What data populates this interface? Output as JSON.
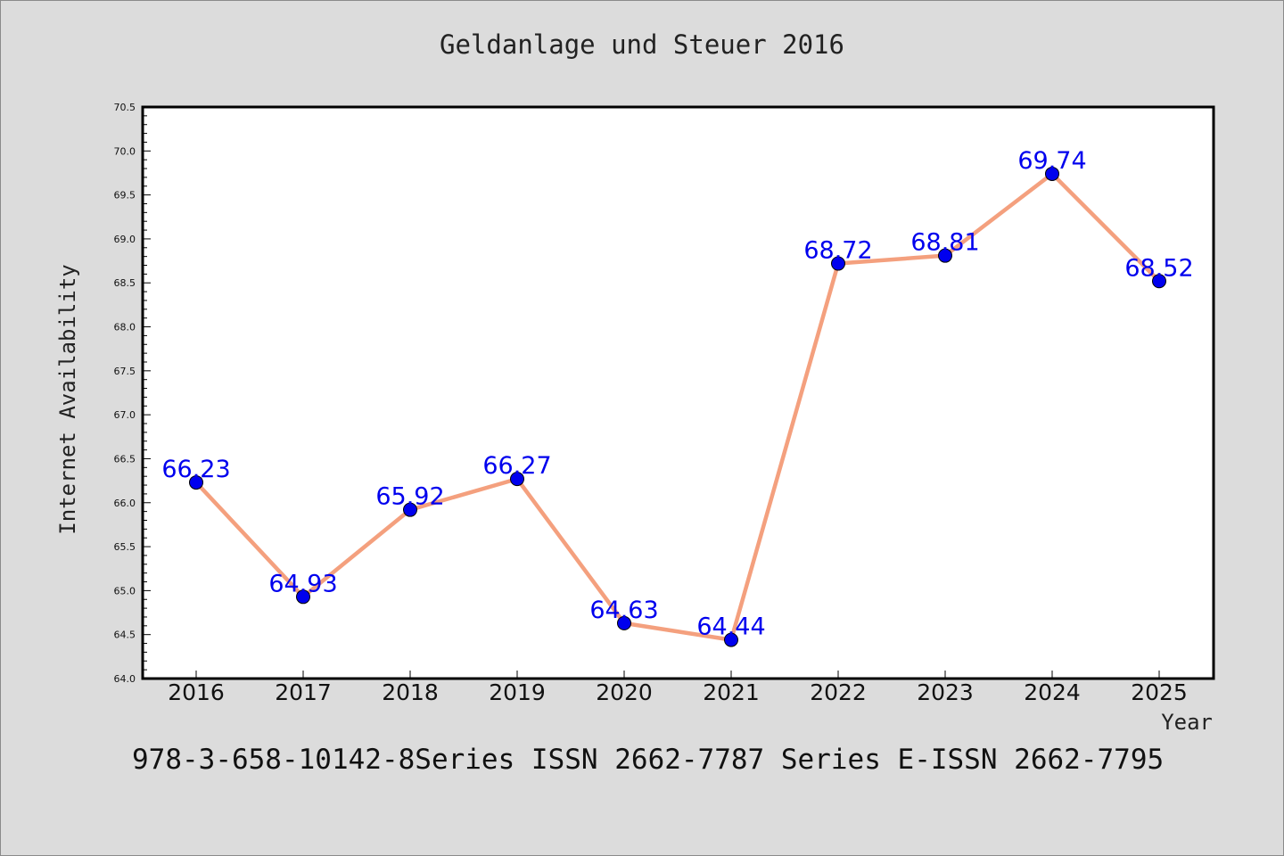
{
  "chart_data": {
    "type": "line",
    "title": "Geldanlage und Steuer 2016",
    "xlabel": "Year",
    "ylabel": "Internet Availability",
    "categories": [
      "2016",
      "2017",
      "2018",
      "2019",
      "2020",
      "2021",
      "2022",
      "2023",
      "2024",
      "2025"
    ],
    "series": [
      {
        "values": [
          66.23,
          64.93,
          65.92,
          66.27,
          64.63,
          64.44,
          68.72,
          68.81,
          69.74,
          68.52
        ]
      }
    ],
    "data_labels": [
      "66.23",
      "64.93",
      "65.92",
      "66.27",
      "64.63",
      "64.44",
      "68.72",
      "68.81",
      "69.74",
      "68.52"
    ],
    "ylim": [
      64.0,
      70.5
    ],
    "y_ticks": [
      "64.0",
      "64.5",
      "65.0",
      "65.5",
      "66.0",
      "66.5",
      "67.0",
      "67.5",
      "68.0",
      "68.5",
      "69.0",
      "69.5",
      "70.0",
      "70.5"
    ],
    "y_minor_step": 0.1,
    "grid": false,
    "line_color": "#f4a07e",
    "marker_color": "#0000ee",
    "label_color": "#0000ee"
  },
  "footer": {
    "text": "978-3-658-10142-8Series ISSN 2662-7787 Series E-ISSN 2662-7795"
  }
}
